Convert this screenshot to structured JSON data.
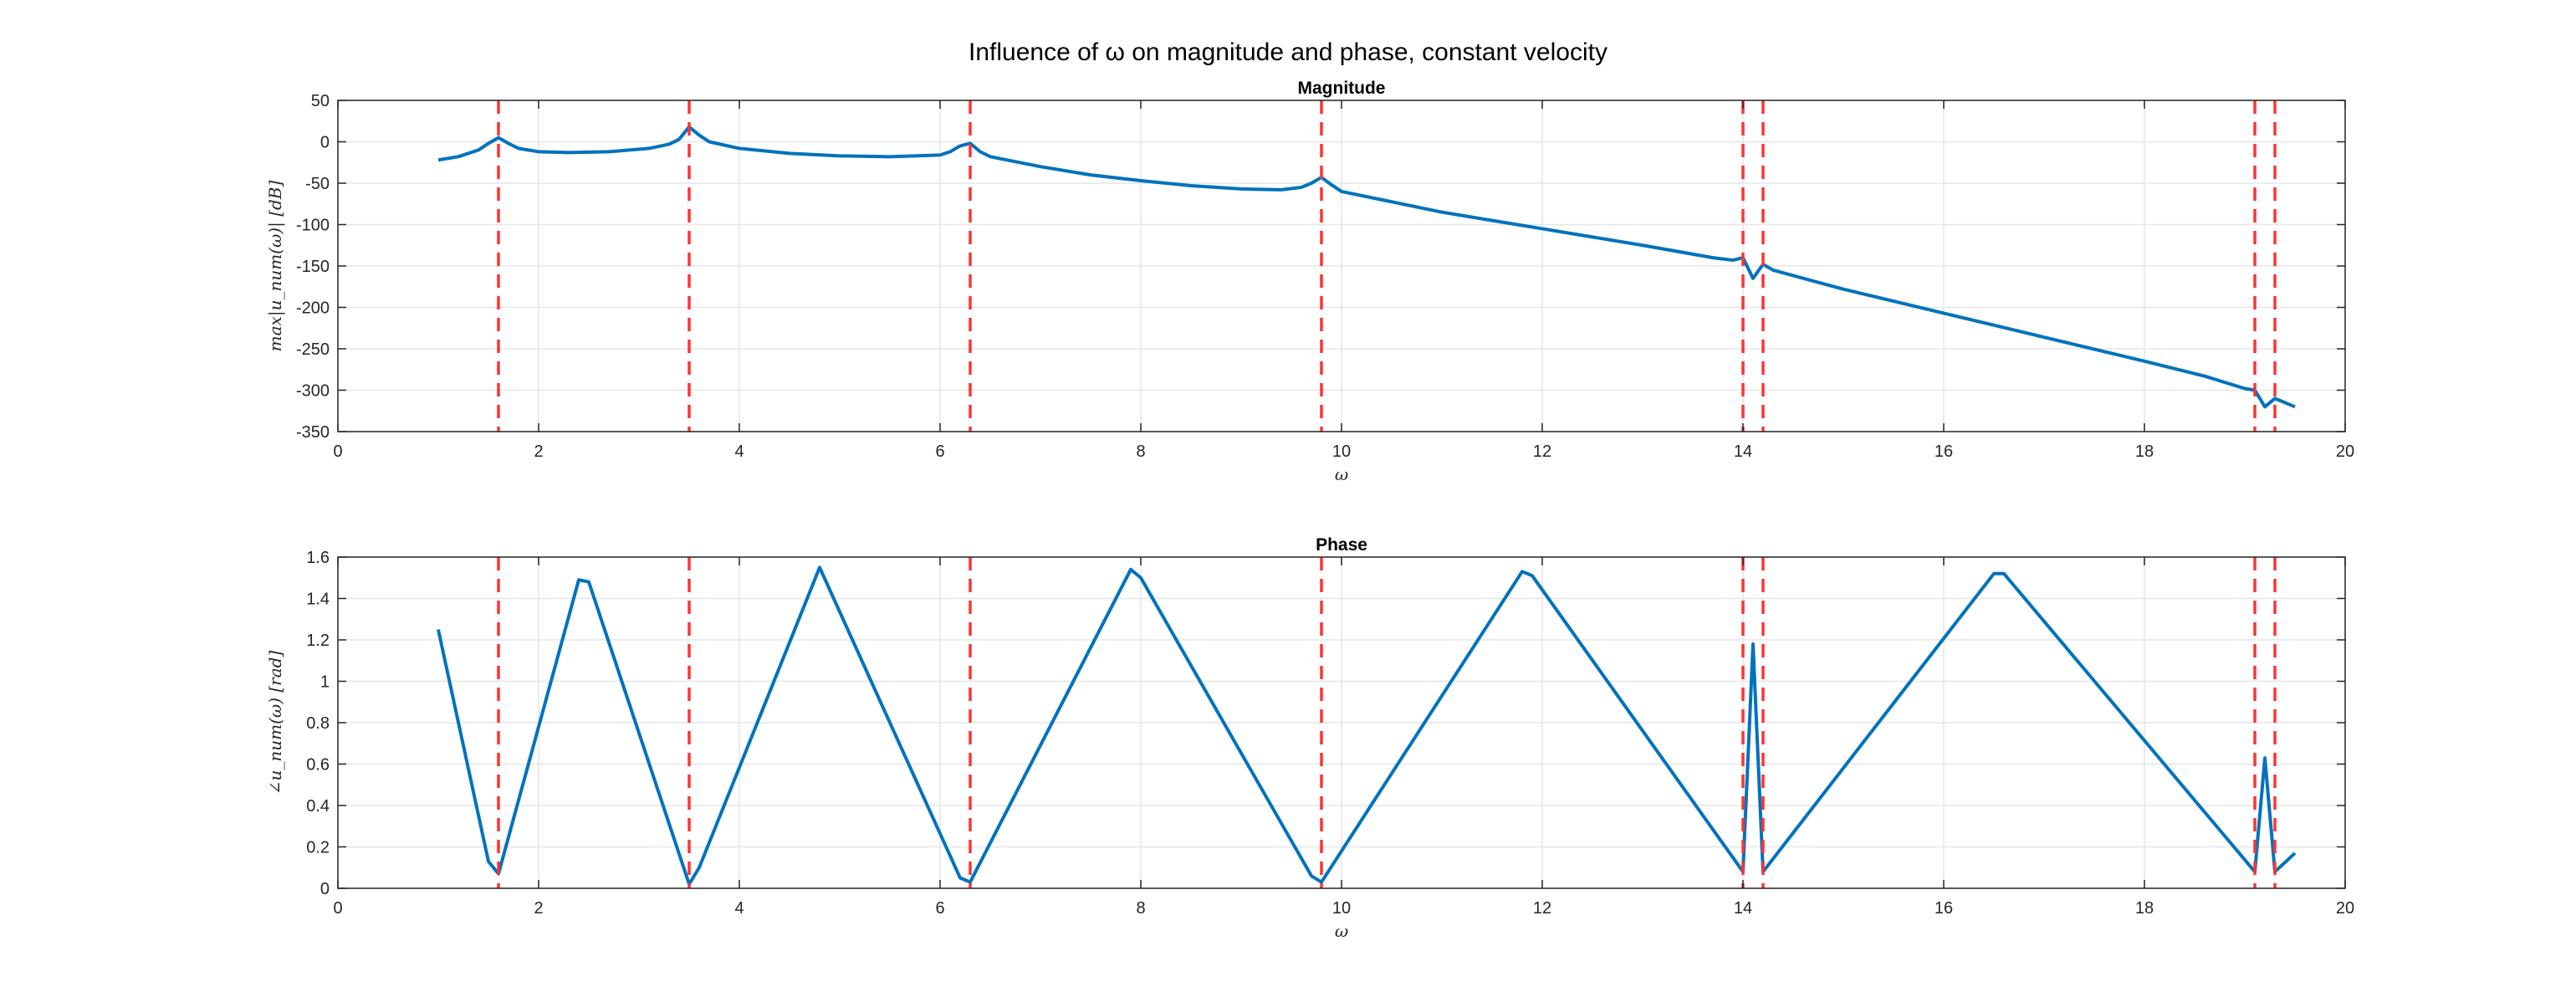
{
  "figure": {
    "title": "Influence of ω on magnitude and phase, constant velocity"
  },
  "colors": {
    "line": "#0072BD",
    "marker": "#FF3333",
    "grid": "#e6e6e6",
    "axis": "#262626"
  },
  "chart_data": [
    {
      "type": "line",
      "title": "Magnitude",
      "xlabel": "ω",
      "ylabel": "max|u_num(ω)| [dB]",
      "xlim": [
        0,
        20
      ],
      "ylim": [
        -350,
        50
      ],
      "xticks": [
        0,
        2,
        4,
        6,
        8,
        10,
        12,
        14,
        16,
        18,
        20
      ],
      "yticks": [
        50,
        0,
        -50,
        -100,
        -150,
        -200,
        -250,
        -300,
        -350
      ],
      "grid": true,
      "vlines": [
        1.6,
        3.5,
        6.3,
        9.8,
        14.0,
        14.2,
        19.1,
        19.3
      ],
      "x": [
        1.0,
        1.2,
        1.4,
        1.5,
        1.6,
        1.7,
        1.8,
        2.0,
        2.3,
        2.7,
        3.1,
        3.3,
        3.4,
        3.5,
        3.6,
        3.7,
        4.0,
        4.5,
        5.0,
        5.5,
        6.0,
        6.1,
        6.2,
        6.3,
        6.4,
        6.5,
        7.0,
        7.5,
        8.0,
        8.5,
        9.0,
        9.4,
        9.6,
        9.7,
        9.8,
        9.9,
        10.0,
        11.0,
        12.0,
        13.0,
        13.7,
        13.9,
        14.0,
        14.1,
        14.2,
        14.3,
        15.0,
        16.0,
        17.0,
        18.0,
        18.6,
        19.0,
        19.1,
        19.2,
        19.3,
        19.5
      ],
      "series": [
        {
          "values": [
            -22,
            -18,
            -10,
            -2,
            5,
            -2,
            -8,
            -12,
            -13,
            -12,
            -8,
            -3,
            3,
            18,
            8,
            0,
            -8,
            -14,
            -17,
            -18,
            -16,
            -12,
            -5,
            -2,
            -12,
            -18,
            -30,
            -40,
            -47,
            -53,
            -57,
            -58,
            -55,
            -50,
            -43,
            -52,
            -60,
            -85,
            -105,
            -125,
            -140,
            -143,
            -140,
            -165,
            -148,
            -155,
            -178,
            -207,
            -236,
            -265,
            -283,
            -298,
            -300,
            -320,
            -310,
            -320
          ]
        }
      ]
    },
    {
      "type": "line",
      "title": "Phase",
      "xlabel": "ω",
      "ylabel": "∠u_num(ω) [rad]",
      "xlim": [
        0,
        20
      ],
      "ylim": [
        0,
        1.6
      ],
      "xticks": [
        0,
        2,
        4,
        6,
        8,
        10,
        12,
        14,
        16,
        18,
        20
      ],
      "yticks": [
        0,
        0.2,
        0.4,
        0.6,
        0.8,
        1,
        1.2,
        1.4,
        1.6
      ],
      "grid": true,
      "vlines": [
        1.6,
        3.5,
        6.3,
        9.8,
        14.0,
        14.2,
        19.1,
        19.3
      ],
      "x": [
        1.0,
        1.5,
        1.6,
        2.4,
        2.5,
        3.5,
        3.6,
        4.8,
        6.2,
        6.3,
        7.9,
        8.0,
        9.7,
        9.8,
        11.8,
        11.9,
        14.0,
        14.1,
        14.2,
        16.5,
        16.6,
        19.1,
        19.2,
        19.3,
        19.5
      ],
      "series": [
        {
          "values": [
            1.25,
            0.13,
            0.07,
            1.49,
            1.48,
            0.02,
            0.1,
            1.55,
            0.05,
            0.03,
            1.54,
            1.5,
            0.06,
            0.03,
            1.53,
            1.51,
            0.08,
            1.18,
            0.08,
            1.52,
            1.52,
            0.08,
            0.63,
            0.08,
            0.17
          ]
        }
      ]
    }
  ]
}
